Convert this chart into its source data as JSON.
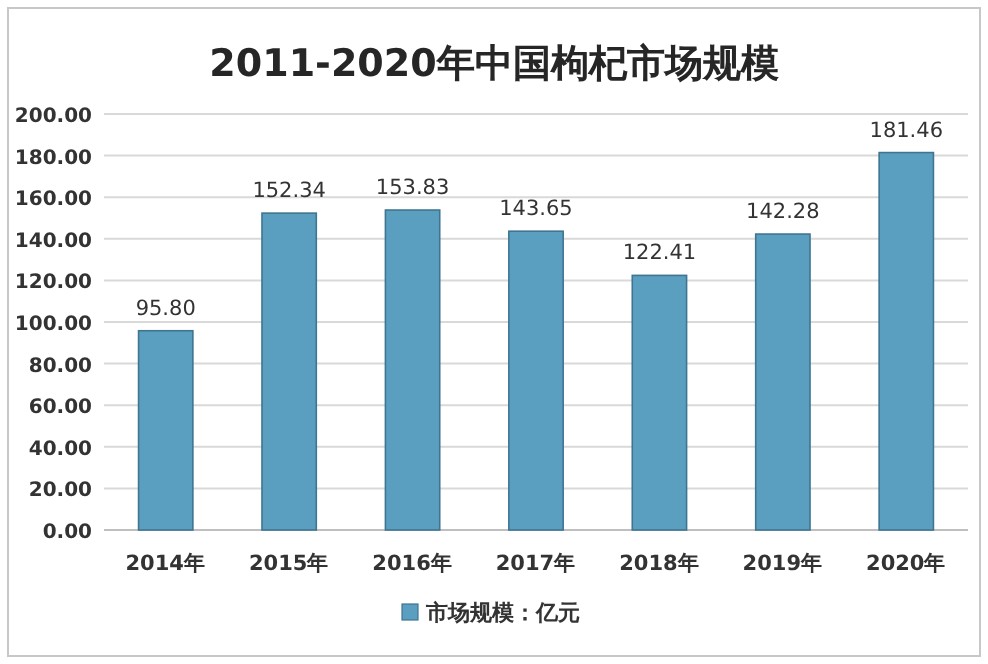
{
  "chart_data": {
    "type": "bar",
    "title": "2011-2020年中国枸杞市场规模",
    "categories": [
      "2014年",
      "2015年",
      "2016年",
      "2017年",
      "2018年",
      "2019年",
      "2020年"
    ],
    "series": [
      {
        "name": "市场规模：亿元",
        "color": "#5b9fc0",
        "values": [
          95.8,
          152.34,
          153.83,
          143.65,
          122.41,
          142.28,
          181.46
        ],
        "value_labels": [
          "95.80",
          "152.34",
          "153.83",
          "143.65",
          "122.41",
          "142.28",
          "181.46"
        ]
      }
    ],
    "ylim": [
      0,
      200
    ],
    "yticks": [
      {
        "value": 0,
        "label": "0.00"
      },
      {
        "value": 20,
        "label": "20.00"
      },
      {
        "value": 40,
        "label": "40.00"
      },
      {
        "value": 60,
        "label": "60.00"
      },
      {
        "value": 80,
        "label": "80.00"
      },
      {
        "value": 100,
        "label": "100.00"
      },
      {
        "value": 120,
        "label": "120.00"
      },
      {
        "value": 140,
        "label": "140.00"
      },
      {
        "value": 160,
        "label": "160.00"
      },
      {
        "value": 180,
        "label": "180.00"
      },
      {
        "value": 200,
        "label": "200.00"
      }
    ],
    "grid": "y",
    "legend": "bottom"
  }
}
